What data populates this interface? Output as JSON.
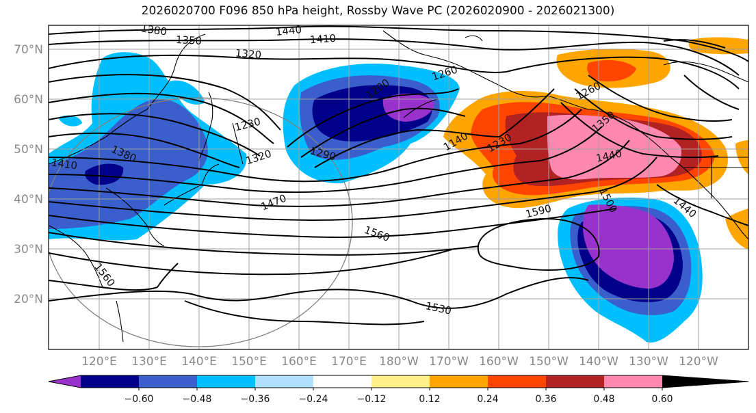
{
  "title": "2026020700 F096 850 hPa height, Rossby Wave PC (2026020900 - 2026021300)",
  "map": {
    "lat_labels": [
      "70°N",
      "60°N",
      "50°N",
      "40°N",
      "30°N",
      "20°N"
    ],
    "lon_labels": [
      "120°E",
      "130°E",
      "140°E",
      "150°E",
      "160°E",
      "170°E",
      "180°W",
      "170°W",
      "160°W",
      "150°W",
      "140°W",
      "130°W",
      "120°W"
    ],
    "contour_labels": [
      {
        "text": "1380"
      },
      {
        "text": "1440"
      },
      {
        "text": "1410"
      },
      {
        "text": "1350"
      },
      {
        "text": "1320"
      },
      {
        "text": "1260"
      },
      {
        "text": "1230"
      },
      {
        "text": "1380"
      },
      {
        "text": "1410"
      },
      {
        "text": "1320"
      },
      {
        "text": "1290"
      },
      {
        "text": "1470"
      },
      {
        "text": "1560"
      },
      {
        "text": "1560"
      },
      {
        "text": "1530"
      },
      {
        "text": "1590"
      },
      {
        "text": "1500"
      },
      {
        "text": "1440"
      },
      {
        "text": "1440"
      },
      {
        "text": "1350"
      },
      {
        "text": "1260"
      },
      {
        "text": "1230"
      },
      {
        "text": "1140"
      },
      {
        "text": "1200"
      }
    ]
  },
  "colorbar": {
    "colors": [
      "#9932cc",
      "#00008b",
      "#3a5fcd",
      "#00bfff",
      "#b0e2ff",
      "#ffffff",
      "#fff08a",
      "#ffa500",
      "#ff4500",
      "#b22222",
      "#ff88b0"
    ],
    "tick_labels": [
      "−0.60",
      "−0.48",
      "−0.36",
      "−0.24",
      "−0.12",
      "0.12",
      "0.24",
      "0.36",
      "0.48",
      "0.60"
    ]
  }
}
